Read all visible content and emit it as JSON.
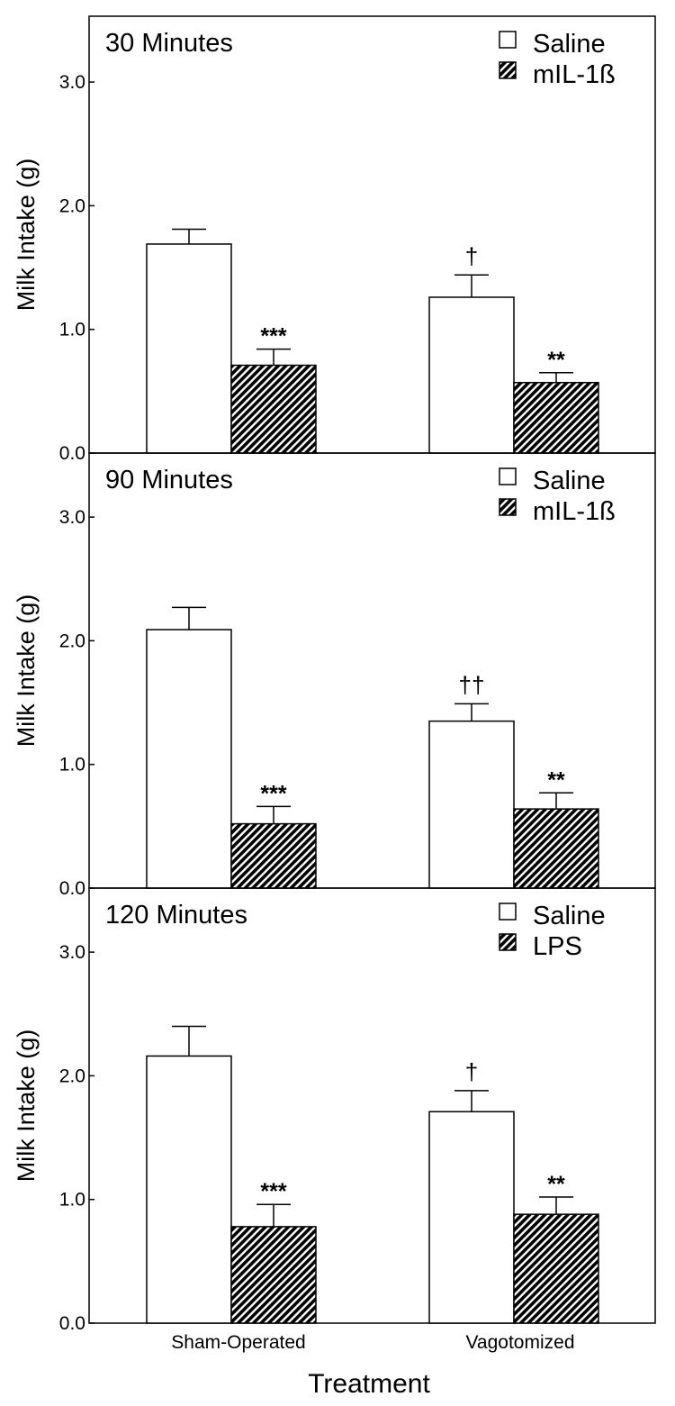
{
  "figure": {
    "xlabel": "Treatment",
    "categories": [
      "Sham-Operated",
      "Vagotomized"
    ]
  },
  "colors": {
    "saline_fill": "#ffffff",
    "treatment_fill": "hatched-black",
    "outline": "#000000"
  },
  "chart_data": [
    {
      "type": "bar",
      "title": "30 Minutes",
      "ylabel": "Milk Intake (g)",
      "ylim": [
        0,
        3.0
      ],
      "yticks": [
        "0.0",
        "1.0",
        "2.0",
        "3.0"
      ],
      "categories": [
        "Sham-Operated",
        "Vagotomized"
      ],
      "legend_position": "top-right",
      "series": [
        {
          "name": "Saline",
          "values": [
            1.69,
            1.26
          ],
          "errors": [
            0.12,
            0.18
          ],
          "annotations": [
            "",
            "†"
          ]
        },
        {
          "name": "mIL-1ß",
          "values": [
            0.71,
            0.57
          ],
          "errors": [
            0.13,
            0.08
          ],
          "annotations": [
            "***",
            "**"
          ]
        }
      ]
    },
    {
      "type": "bar",
      "title": "90 Minutes",
      "ylabel": "Milk Intake (g)",
      "ylim": [
        0,
        3.0
      ],
      "yticks": [
        "0.0",
        "1.0",
        "2.0",
        "3.0"
      ],
      "categories": [
        "Sham-Operated",
        "Vagotomized"
      ],
      "legend_position": "top-right",
      "series": [
        {
          "name": "Saline",
          "values": [
            2.09,
            1.35
          ],
          "errors": [
            0.18,
            0.14
          ],
          "annotations": [
            "",
            "††"
          ]
        },
        {
          "name": "mIL-1ß",
          "values": [
            0.52,
            0.64
          ],
          "errors": [
            0.14,
            0.13
          ],
          "annotations": [
            "***",
            "**"
          ]
        }
      ]
    },
    {
      "type": "bar",
      "title": "120 Minutes",
      "ylabel": "Milk Intake (g)",
      "ylim": [
        0,
        3.0
      ],
      "yticks": [
        "0.0",
        "1.0",
        "2.0",
        "3.0"
      ],
      "categories": [
        "Sham-Operated",
        "Vagotomized"
      ],
      "legend_position": "top-right",
      "series": [
        {
          "name": "Saline",
          "values": [
            2.16,
            1.71
          ],
          "errors": [
            0.24,
            0.17
          ],
          "annotations": [
            "",
            "†"
          ]
        },
        {
          "name": "LPS",
          "values": [
            0.78,
            0.88
          ],
          "errors": [
            0.18,
            0.14
          ],
          "annotations": [
            "***",
            "**"
          ]
        }
      ]
    }
  ]
}
